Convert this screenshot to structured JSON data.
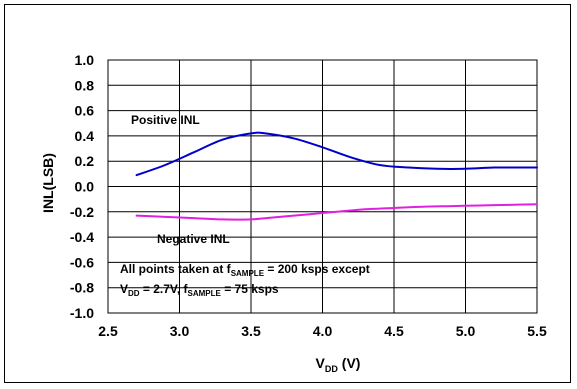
{
  "chart_data": {
    "type": "line",
    "xlabel": {
      "main": "V",
      "sub": "DD",
      "rest": " (V)"
    },
    "ylabel": "INL(LSB)",
    "xlim": [
      2.5,
      5.5
    ],
    "ylim": [
      -1.0,
      1.0
    ],
    "xticks": [
      "2.5",
      "3.0",
      "3.5",
      "4.0",
      "4.5",
      "5.0",
      "5.5"
    ],
    "yticks": [
      "1.0",
      "0.8",
      "0.6",
      "0.4",
      "0.2",
      "0.0",
      "-0.2",
      "-0.4",
      "-0.6",
      "-0.8",
      "-1.0"
    ],
    "grid": true,
    "series": [
      {
        "name": "Positive INL",
        "color": "#0000CC",
        "x": [
          2.7,
          2.9,
          3.1,
          3.3,
          3.5,
          3.6,
          3.8,
          4.0,
          4.2,
          4.4,
          4.6,
          4.8,
          5.0,
          5.2,
          5.4,
          5.5
        ],
        "y": [
          0.09,
          0.17,
          0.27,
          0.37,
          0.42,
          0.42,
          0.38,
          0.31,
          0.23,
          0.17,
          0.15,
          0.14,
          0.14,
          0.15,
          0.15,
          0.15
        ]
      },
      {
        "name": "Negative INL",
        "color": "#E020E0",
        "x": [
          2.7,
          2.9,
          3.1,
          3.3,
          3.5,
          3.7,
          3.9,
          4.1,
          4.3,
          4.5,
          4.7,
          4.9,
          5.1,
          5.3,
          5.5
        ],
        "y": [
          -0.23,
          -0.24,
          -0.25,
          -0.26,
          -0.26,
          -0.24,
          -0.22,
          -0.2,
          -0.18,
          -0.17,
          -0.16,
          -0.155,
          -0.15,
          -0.145,
          -0.14
        ]
      }
    ],
    "annotations": {
      "positive_label": "Positive INL",
      "negative_label": "Negative INL",
      "note_line1": {
        "pre": "All points taken at f",
        "sub": "SAMPLE",
        "post": " = 200 ksps except"
      },
      "note_line2": {
        "v": "V",
        "vsub": "DD",
        "mid": " = 2.7V,  f",
        "fsub": "SAMPLE",
        "post": " = 75 ksps"
      }
    },
    "colors": {
      "grid": "#000000",
      "frame": "#000000"
    }
  }
}
